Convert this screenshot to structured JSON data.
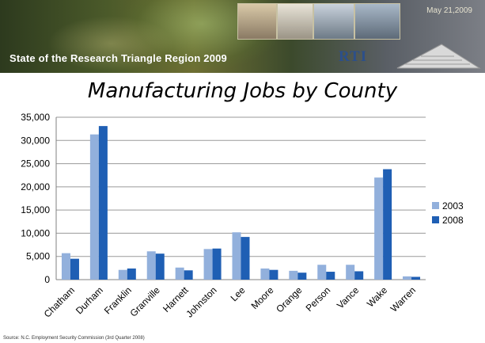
{
  "banner": {
    "title": "State of the Research Triangle Region 2009",
    "date": "May 21,2009",
    "logo_text": "RTI"
  },
  "chart_data": {
    "type": "bar",
    "title": "Manufacturing Jobs by County",
    "xlabel": "",
    "ylabel": "",
    "categories": [
      "Chatham",
      "Durham",
      "Franklin",
      "Granville",
      "Harnett",
      "Johnston",
      "Lee",
      "Moore",
      "Orange",
      "Person",
      "Vance",
      "Wake",
      "Warren"
    ],
    "series": [
      {
        "name": "2003",
        "color": "#92b0dc",
        "values": [
          5700,
          31300,
          2100,
          6100,
          2600,
          6600,
          10200,
          2400,
          1900,
          3200,
          3200,
          22000,
          700
        ]
      },
      {
        "name": "2008",
        "color": "#1f5fb4",
        "values": [
          4500,
          33100,
          2400,
          5600,
          2000,
          6700,
          9200,
          2100,
          1500,
          1700,
          1800,
          23800,
          600
        ]
      }
    ],
    "ylim": [
      0,
      35000
    ],
    "yticks": [
      "0",
      "5,000",
      "10,000",
      "15,000",
      "20,000",
      "25,000",
      "30,000",
      "35,000"
    ],
    "grid": true,
    "legend_position": "right"
  },
  "source": "Source: N.C. Employment Security Commission (3rd Quarter 2008)"
}
